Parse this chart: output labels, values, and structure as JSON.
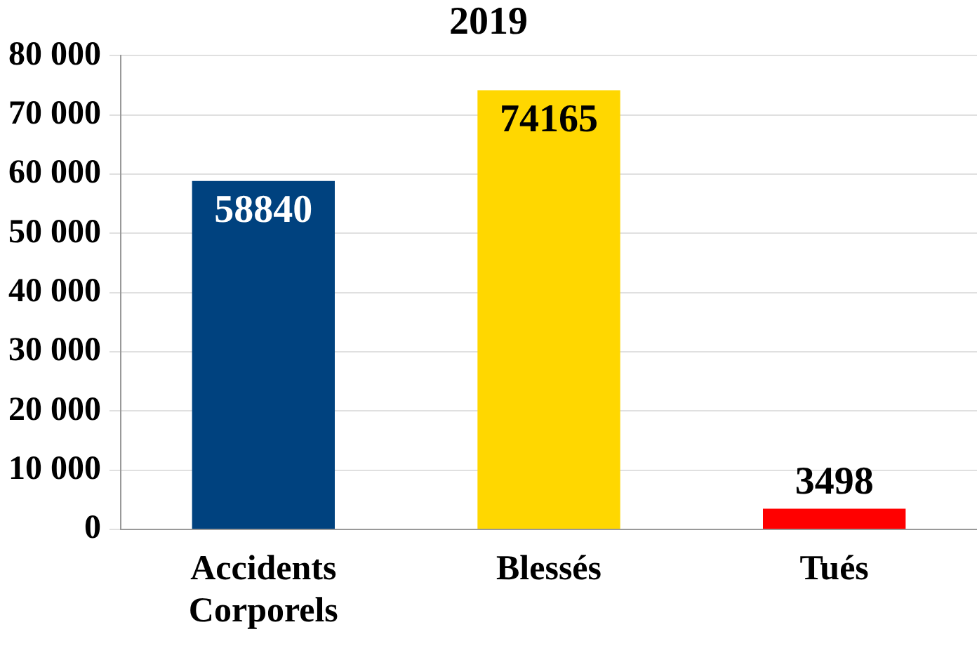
{
  "chart_data": {
    "type": "bar",
    "title": "2019",
    "categories": [
      "Accidents Corporels",
      "Blessés",
      "Tués"
    ],
    "values": [
      58840,
      74165,
      3498
    ],
    "colors": [
      "#00427f",
      "#ffd700",
      "#ff0000"
    ],
    "ylim": [
      0,
      80000
    ],
    "yticks": [
      {
        "value": 0,
        "label": "0"
      },
      {
        "value": 10000,
        "label": "10 000"
      },
      {
        "value": 20000,
        "label": "20 000"
      },
      {
        "value": 30000,
        "label": "30 000"
      },
      {
        "value": 40000,
        "label": "40 000"
      },
      {
        "value": 50000,
        "label": "50 000"
      },
      {
        "value": 60000,
        "label": "60 000"
      },
      {
        "value": 70000,
        "label": "70 000"
      },
      {
        "value": 80000,
        "label": "80 000"
      }
    ],
    "grid": "y",
    "data_labels": true,
    "legend": false
  }
}
